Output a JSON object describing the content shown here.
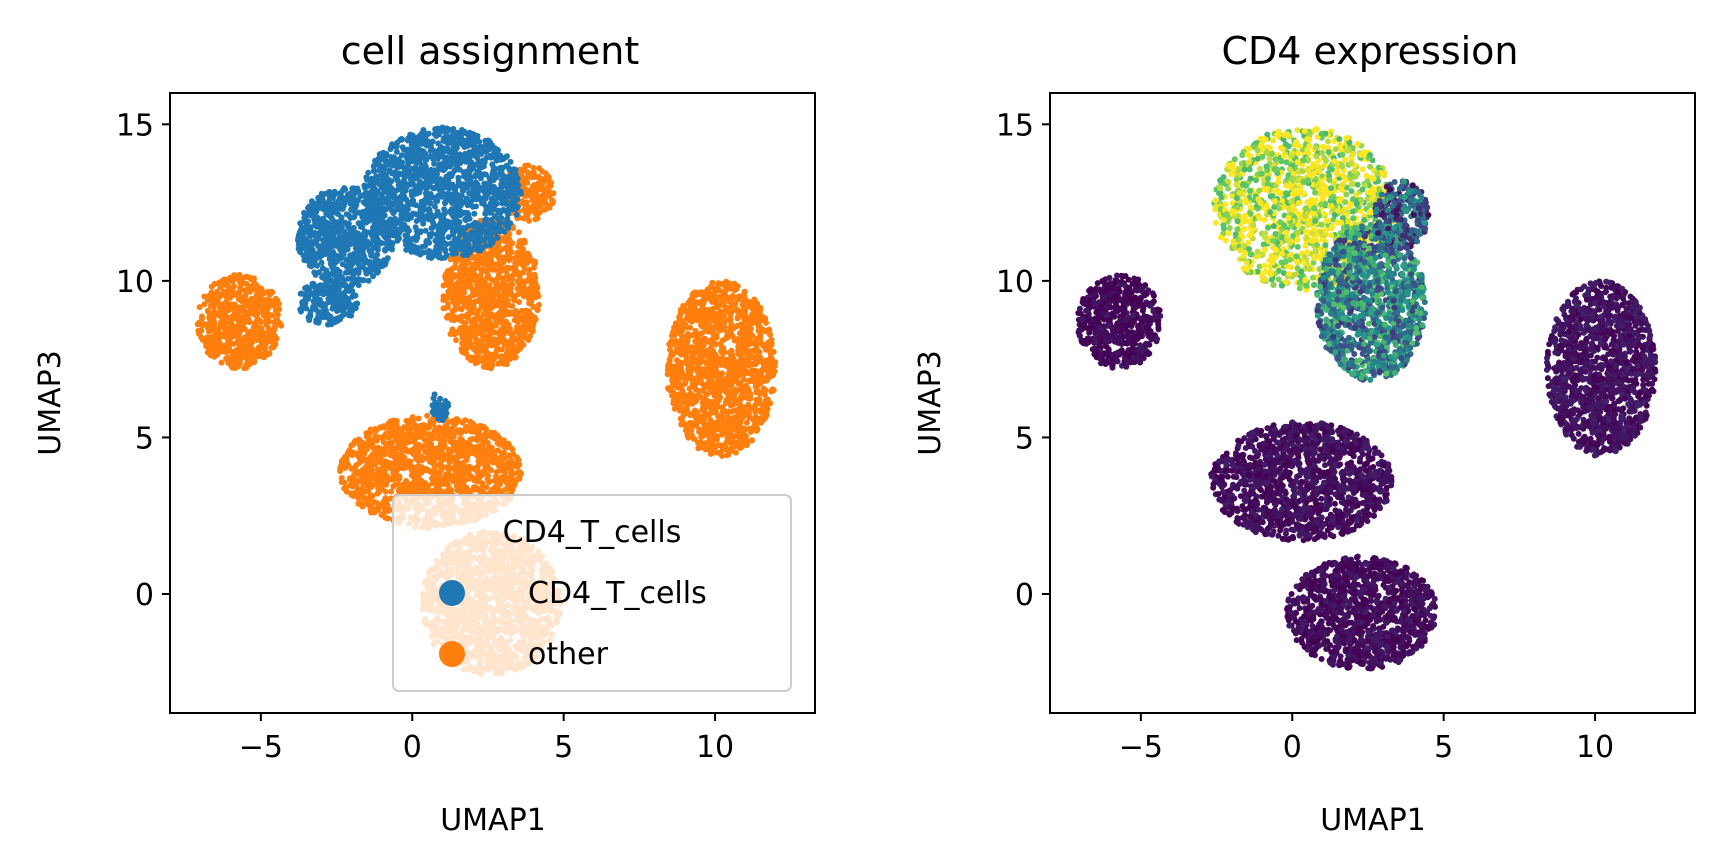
{
  "chart_data": [
    {
      "type": "scatter",
      "title": "cell assignment",
      "xlabel": "UMAP1",
      "ylabel": "UMAP3",
      "xlim": [
        -8,
        13.3
      ],
      "ylim": [
        -3.8,
        16
      ],
      "xticks": [
        -5,
        0,
        5,
        10
      ],
      "yticks": [
        0,
        5,
        10,
        15
      ],
      "xtick_labels": [
        "−5",
        "0",
        "5",
        "10"
      ],
      "ytick_labels": [
        "0",
        "5",
        "10",
        "15"
      ],
      "grid": false,
      "legend": {
        "title": "CD4_T_cells",
        "placement": "lower-right",
        "entries": [
          {
            "label": "CD4_T_cells",
            "color": "#1f77b4"
          },
          {
            "label": "other",
            "color": "#ff7f0e"
          }
        ]
      },
      "series": [
        {
          "name": "CD4_T_cells",
          "color": "#1f77b4",
          "clusters": [
            {
              "center": [
                1.0,
                12.8
              ],
              "radius": [
                2.6,
                2.1
              ]
            },
            {
              "center": [
                -2.2,
                11.4
              ],
              "radius": [
                1.6,
                1.6
              ]
            },
            {
              "center": [
                -2.8,
                9.3
              ],
              "radius": [
                1.0,
                0.7
              ]
            },
            {
              "center": [
                0.9,
                6.0
              ],
              "radius": [
                0.3,
                0.5
              ]
            }
          ]
        },
        {
          "name": "other",
          "color": "#ff7f0e",
          "clusters": [
            {
              "center": [
                -5.7,
                8.7
              ],
              "radius": [
                1.4,
                1.5
              ]
            },
            {
              "center": [
                2.6,
                9.6
              ],
              "radius": [
                1.6,
                2.4
              ]
            },
            {
              "center": [
                3.8,
                12.8
              ],
              "radius": [
                0.9,
                0.9
              ]
            },
            {
              "center": [
                10.2,
                7.2
              ],
              "radius": [
                1.8,
                2.8
              ]
            },
            {
              "center": [
                0.6,
                3.9
              ],
              "radius": [
                3.0,
                1.8
              ]
            },
            {
              "center": [
                2.6,
                -0.3
              ],
              "radius": [
                2.3,
                2.3
              ]
            }
          ]
        }
      ]
    },
    {
      "type": "scatter",
      "title": "CD4 expression",
      "xlabel": "UMAP1",
      "ylabel": "UMAP3",
      "xlim": [
        -8,
        13.3
      ],
      "ylim": [
        -3.8,
        16
      ],
      "xticks": [
        -5,
        0,
        5,
        10
      ],
      "yticks": [
        0,
        5,
        10,
        15
      ],
      "xtick_labels": [
        "−5",
        "0",
        "5",
        "10"
      ],
      "ytick_labels": [
        "0",
        "5",
        "10",
        "15"
      ],
      "grid": false,
      "colormap": [
        "#440154",
        "#3b528b",
        "#21918c",
        "#5ec962",
        "#fde725"
      ],
      "clusters": [
        {
          "center": [
            0.4,
            12.3
          ],
          "radius": [
            3.0,
            2.6
          ],
          "expression": 0.93
        },
        {
          "center": [
            2.6,
            9.3
          ],
          "radius": [
            1.8,
            2.5
          ],
          "expression": 0.45
        },
        {
          "center": [
            3.6,
            12.1
          ],
          "radius": [
            0.9,
            1.1
          ],
          "expression": 0.3
        },
        {
          "center": [
            -5.7,
            8.7
          ],
          "radius": [
            1.4,
            1.5
          ],
          "expression": 0.02
        },
        {
          "center": [
            10.2,
            7.2
          ],
          "radius": [
            1.8,
            2.8
          ],
          "expression": 0.05
        },
        {
          "center": [
            0.3,
            3.6
          ],
          "radius": [
            3.0,
            1.9
          ],
          "expression": 0.04
        },
        {
          "center": [
            2.3,
            -0.6
          ],
          "radius": [
            2.5,
            1.8
          ],
          "expression": 0.03
        }
      ]
    }
  ]
}
